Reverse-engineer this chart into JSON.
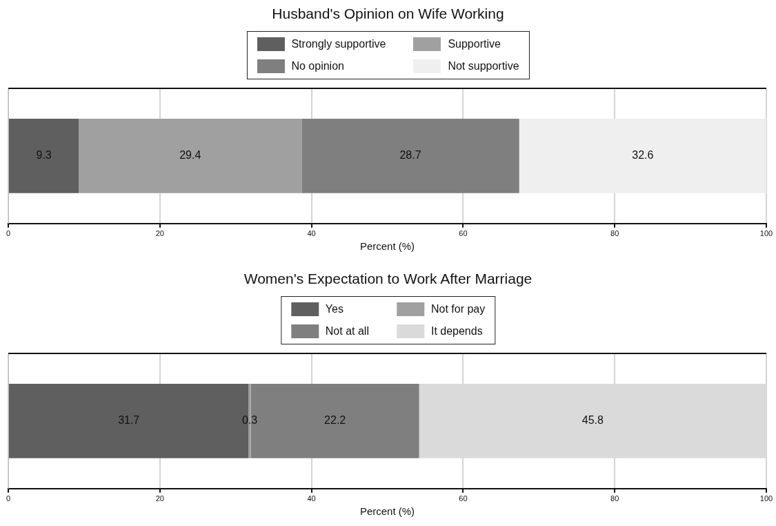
{
  "chart_data": [
    {
      "type": "bar",
      "orientation": "horizontal",
      "stacked": true,
      "title": "Husband's Opinion on Wife Working",
      "xlabel": "Percent (%)",
      "categories": [
        null
      ],
      "series": [
        {
          "name": "Strongly supportive",
          "color": "#5f5f5f",
          "values": [
            9.3
          ]
        },
        {
          "name": "Supportive",
          "color": "#a0a0a0",
          "values": [
            29.4
          ]
        },
        {
          "name": "No opinion",
          "color": "#7f7f7f",
          "values": [
            28.7
          ]
        },
        {
          "name": "Not supportive",
          "color": "#efefef",
          "values": [
            32.6
          ]
        }
      ],
      "xlim": [
        0,
        100
      ],
      "xticks": [
        0,
        20,
        40,
        60,
        80,
        100
      ],
      "grid": "x",
      "legend": "top",
      "data_labels": true
    },
    {
      "type": "bar",
      "orientation": "horizontal",
      "stacked": true,
      "title": "Women's Expectation to Work After Marriage",
      "xlabel": "Percent (%)",
      "categories": [
        null
      ],
      "series": [
        {
          "name": "Yes",
          "color": "#5f5f5f",
          "values": [
            31.7
          ]
        },
        {
          "name": "Not for pay",
          "color": "#a0a0a0",
          "values": [
            0.3
          ]
        },
        {
          "name": "Not at all",
          "color": "#7f7f7f",
          "values": [
            22.2
          ]
        },
        {
          "name": "It depends",
          "color": "#dadada",
          "values": [
            45.8
          ]
        }
      ],
      "xlim": [
        0,
        100
      ],
      "xticks": [
        0,
        20,
        40,
        60,
        80,
        100
      ],
      "grid": "x",
      "legend": "top",
      "data_labels": true
    }
  ]
}
